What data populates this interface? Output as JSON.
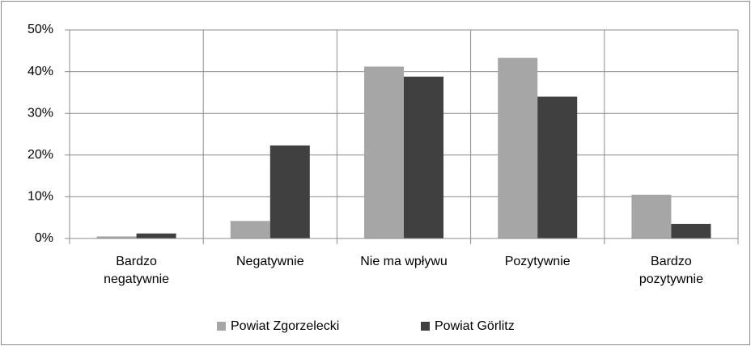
{
  "chart_data": {
    "type": "bar",
    "categories": [
      "Bardzo\nnegatywnie",
      "Negatywnie",
      "Nie ma wpływu",
      "Pozytywnie",
      "Bardzo\npozytywnie"
    ],
    "series": [
      {
        "name": "Powiat Zgorzelecki",
        "color": "#a6a6a6",
        "values": [
          0.5,
          4.2,
          41.2,
          43.3,
          10.5
        ]
      },
      {
        "name": "Powiat Görlitz",
        "color": "#404040",
        "values": [
          1.2,
          22.3,
          38.8,
          34.0,
          3.5
        ]
      }
    ],
    "ylim": [
      0,
      50
    ],
    "yticks": [
      {
        "value": 0,
        "label": "0%"
      },
      {
        "value": 10,
        "label": "10%"
      },
      {
        "value": 20,
        "label": "20%"
      },
      {
        "value": 30,
        "label": "30%"
      },
      {
        "value": 40,
        "label": "40%"
      },
      {
        "value": 50,
        "label": "50%"
      }
    ],
    "grid": true,
    "legend": "bottom"
  }
}
